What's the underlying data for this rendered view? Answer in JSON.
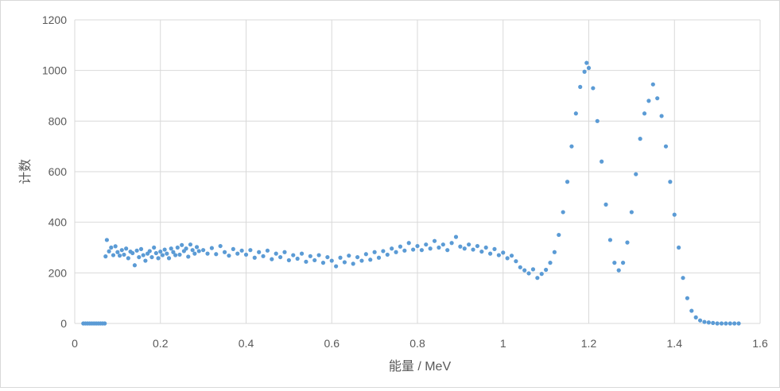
{
  "chart_data": {
    "type": "scatter",
    "xlabel": "能量 / MeV",
    "ylabel": "计数",
    "xlim": [
      0,
      1.6
    ],
    "ylim": [
      0,
      1200
    ],
    "x_ticks": [
      "0",
      "0.2",
      "0.4",
      "0.6",
      "0.8",
      "1",
      "1.2",
      "1.4",
      "1.6"
    ],
    "y_ticks": [
      "0",
      "200",
      "400",
      "600",
      "800",
      "1000",
      "1200"
    ],
    "grid": true,
    "legend": "none",
    "marker_color": "#5B9BD5",
    "grid_color": "#d9d9d9",
    "series": [
      {
        "values": [
          [
            0.02,
            0
          ],
          [
            0.025,
            0
          ],
          [
            0.03,
            0
          ],
          [
            0.035,
            0
          ],
          [
            0.04,
            0
          ],
          [
            0.045,
            0
          ],
          [
            0.05,
            0
          ],
          [
            0.055,
            0
          ],
          [
            0.06,
            0
          ],
          [
            0.065,
            0
          ],
          [
            0.07,
            0
          ],
          [
            0.072,
            265
          ],
          [
            0.075,
            330
          ],
          [
            0.08,
            285
          ],
          [
            0.085,
            300
          ],
          [
            0.09,
            270
          ],
          [
            0.095,
            305
          ],
          [
            0.1,
            282
          ],
          [
            0.105,
            268
          ],
          [
            0.11,
            290
          ],
          [
            0.115,
            272
          ],
          [
            0.12,
            296
          ],
          [
            0.125,
            258
          ],
          [
            0.13,
            284
          ],
          [
            0.135,
            278
          ],
          [
            0.14,
            230
          ],
          [
            0.145,
            288
          ],
          [
            0.15,
            262
          ],
          [
            0.155,
            294
          ],
          [
            0.16,
            270
          ],
          [
            0.165,
            248
          ],
          [
            0.17,
            276
          ],
          [
            0.175,
            286
          ],
          [
            0.18,
            262
          ],
          [
            0.185,
            300
          ],
          [
            0.19,
            278
          ],
          [
            0.195,
            258
          ],
          [
            0.2,
            284
          ],
          [
            0.205,
            270
          ],
          [
            0.21,
            292
          ],
          [
            0.215,
            276
          ],
          [
            0.22,
            258
          ],
          [
            0.225,
            296
          ],
          [
            0.23,
            282
          ],
          [
            0.235,
            270
          ],
          [
            0.24,
            300
          ],
          [
            0.245,
            272
          ],
          [
            0.25,
            310
          ],
          [
            0.255,
            286
          ],
          [
            0.26,
            296
          ],
          [
            0.265,
            264
          ],
          [
            0.27,
            312
          ],
          [
            0.275,
            290
          ],
          [
            0.28,
            276
          ],
          [
            0.285,
            302
          ],
          [
            0.29,
            286
          ],
          [
            0.3,
            290
          ],
          [
            0.31,
            276
          ],
          [
            0.32,
            298
          ],
          [
            0.33,
            274
          ],
          [
            0.34,
            306
          ],
          [
            0.35,
            282
          ],
          [
            0.36,
            268
          ],
          [
            0.37,
            294
          ],
          [
            0.38,
            276
          ],
          [
            0.39,
            288
          ],
          [
            0.4,
            272
          ],
          [
            0.41,
            290
          ],
          [
            0.42,
            260
          ],
          [
            0.43,
            282
          ],
          [
            0.44,
            266
          ],
          [
            0.45,
            288
          ],
          [
            0.46,
            254
          ],
          [
            0.47,
            276
          ],
          [
            0.48,
            262
          ],
          [
            0.49,
            282
          ],
          [
            0.5,
            250
          ],
          [
            0.51,
            270
          ],
          [
            0.52,
            256
          ],
          [
            0.53,
            276
          ],
          [
            0.54,
            244
          ],
          [
            0.55,
            266
          ],
          [
            0.56,
            250
          ],
          [
            0.57,
            270
          ],
          [
            0.58,
            240
          ],
          [
            0.59,
            262
          ],
          [
            0.6,
            248
          ],
          [
            0.61,
            226
          ],
          [
            0.62,
            260
          ],
          [
            0.63,
            242
          ],
          [
            0.64,
            268
          ],
          [
            0.65,
            236
          ],
          [
            0.66,
            262
          ],
          [
            0.67,
            248
          ],
          [
            0.68,
            274
          ],
          [
            0.69,
            252
          ],
          [
            0.7,
            282
          ],
          [
            0.71,
            260
          ],
          [
            0.72,
            286
          ],
          [
            0.73,
            272
          ],
          [
            0.74,
            296
          ],
          [
            0.75,
            282
          ],
          [
            0.76,
            304
          ],
          [
            0.77,
            288
          ],
          [
            0.78,
            318
          ],
          [
            0.79,
            292
          ],
          [
            0.8,
            306
          ],
          [
            0.81,
            290
          ],
          [
            0.82,
            312
          ],
          [
            0.83,
            296
          ],
          [
            0.84,
            326
          ],
          [
            0.85,
            300
          ],
          [
            0.86,
            312
          ],
          [
            0.87,
            290
          ],
          [
            0.88,
            318
          ],
          [
            0.89,
            342
          ],
          [
            0.9,
            304
          ],
          [
            0.91,
            296
          ],
          [
            0.92,
            312
          ],
          [
            0.93,
            292
          ],
          [
            0.94,
            306
          ],
          [
            0.95,
            284
          ],
          [
            0.96,
            300
          ],
          [
            0.97,
            276
          ],
          [
            0.98,
            294
          ],
          [
            0.99,
            270
          ],
          [
            1.0,
            280
          ],
          [
            1.01,
            258
          ],
          [
            1.02,
            268
          ],
          [
            1.03,
            246
          ],
          [
            1.04,
            222
          ],
          [
            1.05,
            210
          ],
          [
            1.06,
            198
          ],
          [
            1.07,
            214
          ],
          [
            1.08,
            180
          ],
          [
            1.09,
            196
          ],
          [
            1.1,
            212
          ],
          [
            1.11,
            240
          ],
          [
            1.12,
            282
          ],
          [
            1.13,
            350
          ],
          [
            1.14,
            440
          ],
          [
            1.15,
            560
          ],
          [
            1.16,
            700
          ],
          [
            1.17,
            830
          ],
          [
            1.18,
            935
          ],
          [
            1.19,
            995
          ],
          [
            1.195,
            1030
          ],
          [
            1.2,
            1010
          ],
          [
            1.21,
            930
          ],
          [
            1.22,
            800
          ],
          [
            1.23,
            640
          ],
          [
            1.24,
            470
          ],
          [
            1.25,
            330
          ],
          [
            1.26,
            240
          ],
          [
            1.27,
            210
          ],
          [
            1.28,
            240
          ],
          [
            1.29,
            320
          ],
          [
            1.3,
            440
          ],
          [
            1.31,
            590
          ],
          [
            1.32,
            730
          ],
          [
            1.33,
            830
          ],
          [
            1.34,
            880
          ],
          [
            1.35,
            945
          ],
          [
            1.36,
            890
          ],
          [
            1.37,
            820
          ],
          [
            1.38,
            700
          ],
          [
            1.39,
            560
          ],
          [
            1.4,
            430
          ],
          [
            1.41,
            300
          ],
          [
            1.42,
            180
          ],
          [
            1.43,
            100
          ],
          [
            1.44,
            50
          ],
          [
            1.45,
            24
          ],
          [
            1.46,
            12
          ],
          [
            1.47,
            6
          ],
          [
            1.48,
            4
          ],
          [
            1.49,
            2
          ],
          [
            1.5,
            0
          ],
          [
            1.51,
            0
          ],
          [
            1.52,
            0
          ],
          [
            1.53,
            0
          ],
          [
            1.54,
            0
          ],
          [
            1.55,
            0
          ]
        ]
      }
    ]
  }
}
